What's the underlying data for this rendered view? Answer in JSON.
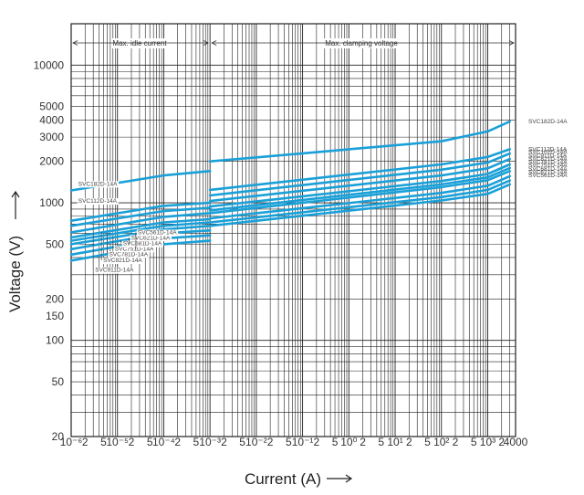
{
  "chart_data": {
    "type": "line",
    "title": "",
    "xlabel": "Current (A)",
    "ylabel": "Voltage (V)",
    "xscale": "log",
    "yscale": "log",
    "xlim": [
      1e-06,
      4000
    ],
    "ylim": [
      20,
      20000
    ],
    "grid": true,
    "band_labels": {
      "idle": "Max. idle current",
      "clamp": "Max. clamping voltage"
    },
    "y_ticks": [
      {
        "label": "10000",
        "value": 10000
      },
      {
        "label": "5000",
        "value": 5000
      },
      {
        "label": "4000",
        "value": 4000
      },
      {
        "label": "3000",
        "value": 3000
      },
      {
        "label": "2000",
        "value": 2000
      },
      {
        "label": "1000",
        "value": 1000
      },
      {
        "label": "500",
        "value": 500
      },
      {
        "label": "200",
        "value": 200
      },
      {
        "label": "150",
        "value": 150
      },
      {
        "label": "100",
        "value": 100
      },
      {
        "label": "50",
        "value": 50
      },
      {
        "label": "20",
        "value": 20
      }
    ],
    "x_ticks": [
      {
        "label": "10⁻⁶",
        "value": 1e-06
      },
      {
        "label": "2",
        "value": 2e-06
      },
      {
        "label": "5",
        "value": 5e-06
      },
      {
        "label": "10⁻⁵",
        "value": 1e-05
      },
      {
        "label": "2",
        "value": 2e-05
      },
      {
        "label": "5",
        "value": 5e-05
      },
      {
        "label": "10⁻⁴",
        "value": 0.0001
      },
      {
        "label": "2",
        "value": 0.0002
      },
      {
        "label": "5",
        "value": 0.0005
      },
      {
        "label": "10⁻³",
        "value": 0.001
      },
      {
        "label": "2",
        "value": 0.002
      },
      {
        "label": "5",
        "value": 0.005
      },
      {
        "label": "10⁻²",
        "value": 0.01
      },
      {
        "label": "2",
        "value": 0.02
      },
      {
        "label": "5",
        "value": 0.05
      },
      {
        "label": "10⁻¹",
        "value": 0.1
      },
      {
        "label": "2",
        "value": 0.2
      },
      {
        "label": "5",
        "value": 0.5
      },
      {
        "label": "10⁰",
        "value": 1
      },
      {
        "label": "2",
        "value": 2
      },
      {
        "label": "5",
        "value": 5
      },
      {
        "label": "10¹",
        "value": 10
      },
      {
        "label": "2",
        "value": 20
      },
      {
        "label": "5",
        "value": 50
      },
      {
        "label": "10²",
        "value": 100
      },
      {
        "label": "2",
        "value": 200
      },
      {
        "label": "5",
        "value": 500
      },
      {
        "label": "10³",
        "value": 1000
      },
      {
        "label": "2",
        "value": 2000
      },
      {
        "label": "4000",
        "value": 4000
      }
    ],
    "series": [
      {
        "name": "SVC182D-14A",
        "idle_label_y": 1330,
        "idle_label_x": 1.3e-06,
        "right_label_y": 3900,
        "idle": {
          "x": [
            1e-06,
            0.0001,
            0.001
          ],
          "y": [
            1230,
            1580,
            1700
          ]
        },
        "clamp": {
          "x": [
            0.001,
            100,
            1000,
            3000
          ],
          "y": [
            2000,
            2800,
            3300,
            3900
          ]
        }
      },
      {
        "name": "SVC112D-14A",
        "idle_label_y": 1000,
        "idle_label_x": 1.3e-06,
        "right_label_y": 2450,
        "idle": {
          "x": [
            1e-06,
            0.0001,
            0.001
          ],
          "y": [
            740,
            950,
            1000
          ]
        },
        "clamp": {
          "x": [
            0.001,
            100,
            1000,
            3000
          ],
          "y": [
            1240,
            1900,
            2150,
            2450
          ]
        }
      },
      {
        "name": "SVC102D-14A",
        "idle_label_y": null,
        "idle_label_x": null,
        "right_label_y": 2330,
        "idle": {
          "x": [
            1e-06,
            0.0001,
            0.001
          ],
          "y": [
            680,
            870,
            920
          ]
        },
        "clamp": {
          "x": [
            0.001,
            100,
            1000,
            3000
          ],
          "y": [
            1130,
            1740,
            1960,
            2280
          ]
        }
      },
      {
        "name": "SVC911D-14A",
        "idle_label_y": 315,
        "idle_label_x": 3e-06,
        "right_label_y": 2200,
        "idle": {
          "x": [
            1e-06,
            0.0001,
            0.001
          ],
          "y": [
            610,
            790,
            840
          ]
        },
        "clamp": {
          "x": [
            0.001,
            100,
            1000,
            3000
          ],
          "y": [
            1030,
            1580,
            1780,
            2080
          ]
        }
      },
      {
        "name": "SVC821D-14A",
        "idle_label_y": 370,
        "idle_label_x": 4.5e-06,
        "right_label_y": 2080,
        "idle": {
          "x": [
            1e-06,
            0.0001,
            0.001
          ],
          "y": [
            560,
            720,
            760
          ]
        },
        "clamp": {
          "x": [
            0.001,
            100,
            1000,
            3000
          ],
          "y": [
            940,
            1440,
            1620,
            1900
          ]
        }
      },
      {
        "name": "SVC781D-14A",
        "idle_label_y": 410,
        "idle_label_x": 6e-06,
        "right_label_y": 1970,
        "idle": {
          "x": [
            1e-06,
            0.0001,
            0.001
          ],
          "y": [
            530,
            680,
            720
          ]
        },
        "clamp": {
          "x": [
            0.001,
            100,
            1000,
            3000
          ],
          "y": [
            880,
            1360,
            1530,
            1790
          ]
        }
      },
      {
        "name": "SVC751D-14A",
        "idle_label_y": 450,
        "idle_label_x": 8e-06,
        "right_label_y": 1870,
        "idle": {
          "x": [
            1e-06,
            0.0001,
            0.001
          ],
          "y": [
            500,
            640,
            680
          ]
        },
        "clamp": {
          "x": [
            0.001,
            100,
            1000,
            3000
          ],
          "y": [
            840,
            1300,
            1460,
            1700
          ]
        }
      },
      {
        "name": "SVC681D-14A",
        "idle_label_y": 490,
        "idle_label_x": 1.2e-05,
        "right_label_y": 1760,
        "idle": {
          "x": [
            1e-06,
            0.0001,
            0.001
          ],
          "y": [
            460,
            600,
            630
          ]
        },
        "clamp": {
          "x": [
            0.001,
            100,
            1000,
            3000
          ],
          "y": [
            770,
            1180,
            1330,
            1560
          ]
        }
      },
      {
        "name": "SVC621D-14A",
        "idle_label_y": 540,
        "idle_label_x": 1.8e-05,
        "right_label_y": 1670,
        "idle": {
          "x": [
            1e-06,
            0.0001,
            0.001
          ],
          "y": [
            420,
            550,
            580
          ]
        },
        "clamp": {
          "x": [
            0.001,
            100,
            1000,
            3000
          ],
          "y": [
            720,
            1100,
            1240,
            1450
          ]
        }
      },
      {
        "name": "SVC561D-14A",
        "idle_label_y": 590,
        "idle_label_x": 2.5e-05,
        "right_label_y": 1580,
        "idle": {
          "x": [
            1e-06,
            0.0001,
            0.001
          ],
          "y": [
            380,
            500,
            530
          ]
        },
        "clamp": {
          "x": [
            0.001,
            100,
            1000,
            3000
          ],
          "y": [
            680,
            1040,
            1160,
            1360
          ]
        }
      }
    ]
  },
  "colors": {
    "line": "#1aa0d8",
    "grid": "#222222",
    "text": "#333333"
  }
}
